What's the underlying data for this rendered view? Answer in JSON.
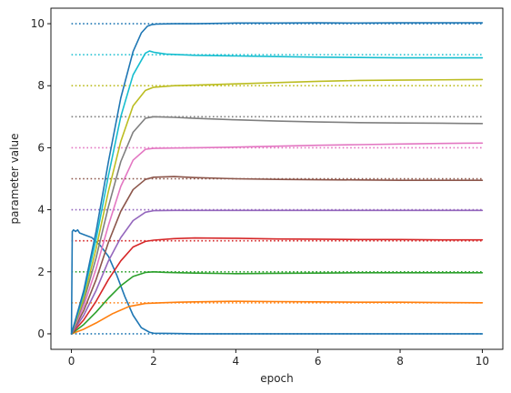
{
  "chart_data": {
    "type": "line",
    "title": "",
    "xlabel": "epoch",
    "ylabel": "parameter value",
    "xlim": [
      -0.5,
      10.5
    ],
    "ylim": [
      -0.5,
      10.5
    ],
    "x_ticks": [
      0,
      2,
      4,
      6,
      8,
      10
    ],
    "x_tick_labels": [
      "0",
      "2",
      "4",
      "6",
      "8",
      "10"
    ],
    "y_ticks": [
      0,
      2,
      4,
      6,
      8,
      10
    ],
    "y_tick_labels": [
      "0",
      "2",
      "4",
      "6",
      "8",
      "10"
    ],
    "grid": false,
    "legend": "none",
    "reference_lines": [
      {
        "y": 0,
        "color": "#1f77b4",
        "style": "dotted"
      },
      {
        "y": 1,
        "color": "#ff7f0e",
        "style": "dotted"
      },
      {
        "y": 2,
        "color": "#2ca02c",
        "style": "dotted"
      },
      {
        "y": 3,
        "color": "#d62728",
        "style": "dotted"
      },
      {
        "y": 4,
        "color": "#9467bd",
        "style": "dotted"
      },
      {
        "y": 5,
        "color": "#8c564b",
        "style": "dotted"
      },
      {
        "y": 6,
        "color": "#e377c2",
        "style": "dotted"
      },
      {
        "y": 7,
        "color": "#7f7f7f",
        "style": "dotted"
      },
      {
        "y": 8,
        "color": "#bcbd22",
        "style": "dotted"
      },
      {
        "y": 9,
        "color": "#17becf",
        "style": "dotted"
      },
      {
        "y": 10,
        "color": "#1f77b4",
        "style": "dotted"
      }
    ],
    "series": [
      {
        "color": "#1f77b4",
        "x": [
          0,
          0.02,
          0.05,
          0.1,
          0.15,
          0.2,
          0.3,
          0.5,
          0.7,
          0.9,
          1.1,
          1.3,
          1.5,
          1.7,
          1.9,
          2.0,
          2.5,
          3,
          4,
          6,
          8,
          10
        ],
        "y": [
          0,
          3.3,
          3.35,
          3.3,
          3.35,
          3.25,
          3.2,
          3.1,
          2.85,
          2.5,
          1.9,
          1.2,
          0.6,
          0.2,
          0.05,
          0.02,
          0.01,
          0,
          0,
          0,
          0,
          0
        ]
      },
      {
        "color": "#ff7f0e",
        "x": [
          0,
          0.3,
          0.6,
          1.0,
          1.4,
          1.8,
          2.2,
          2.6,
          3.0,
          4.0,
          5.0,
          6.0,
          7.0,
          8.0,
          9.0,
          10.0
        ],
        "y": [
          0,
          0.15,
          0.35,
          0.65,
          0.88,
          0.98,
          1.0,
          1.02,
          1.03,
          1.05,
          1.04,
          1.03,
          1.02,
          1.02,
          1.01,
          1.0
        ]
      },
      {
        "color": "#2ca02c",
        "x": [
          0,
          0.3,
          0.6,
          0.9,
          1.2,
          1.5,
          1.8,
          2.0,
          2.3,
          3.0,
          4.0,
          5.0,
          6.0,
          7.0,
          8.0,
          9.0,
          10.0
        ],
        "y": [
          0,
          0.3,
          0.7,
          1.15,
          1.55,
          1.85,
          1.98,
          2.0,
          1.98,
          1.96,
          1.94,
          1.95,
          1.96,
          1.97,
          1.97,
          1.97,
          1.97
        ]
      },
      {
        "color": "#d62728",
        "x": [
          0,
          0.3,
          0.6,
          0.9,
          1.2,
          1.5,
          1.8,
          2.0,
          2.5,
          3.0,
          4.0,
          5.0,
          6.0,
          7.0,
          8.0,
          9.0,
          10.0
        ],
        "y": [
          0,
          0.45,
          1.05,
          1.75,
          2.35,
          2.8,
          2.98,
          3.02,
          3.07,
          3.09,
          3.08,
          3.06,
          3.05,
          3.04,
          3.04,
          3.03,
          3.03
        ]
      },
      {
        "color": "#9467bd",
        "x": [
          0,
          0.3,
          0.6,
          0.9,
          1.2,
          1.5,
          1.8,
          2.0,
          2.5,
          3.0,
          4.0,
          5.0,
          6.0,
          7.0,
          8.0,
          9.0,
          10.0
        ],
        "y": [
          0,
          0.6,
          1.4,
          2.35,
          3.1,
          3.65,
          3.92,
          3.97,
          3.98,
          3.98,
          3.98,
          3.98,
          3.98,
          3.98,
          3.98,
          3.98,
          3.98
        ]
      },
      {
        "color": "#8c564b",
        "x": [
          0,
          0.3,
          0.6,
          0.9,
          1.2,
          1.5,
          1.8,
          2.0,
          2.5,
          3.0,
          4.0,
          5.0,
          6.0,
          7.0,
          8.0,
          9.0,
          10.0
        ],
        "y": [
          0,
          0.75,
          1.75,
          2.95,
          3.95,
          4.65,
          4.98,
          5.05,
          5.07,
          5.04,
          5.0,
          4.98,
          4.97,
          4.96,
          4.95,
          4.95,
          4.95
        ]
      },
      {
        "color": "#e377c2",
        "x": [
          0,
          0.3,
          0.6,
          0.9,
          1.2,
          1.5,
          1.8,
          2.0,
          2.5,
          3.0,
          4.0,
          5.0,
          6.0,
          7.0,
          8.0,
          9.0,
          10.0
        ],
        "y": [
          0,
          0.9,
          2.1,
          3.5,
          4.75,
          5.6,
          5.95,
          5.98,
          5.99,
          6.0,
          6.02,
          6.05,
          6.08,
          6.1,
          6.12,
          6.14,
          6.15
        ]
      },
      {
        "color": "#7f7f7f",
        "x": [
          0,
          0.3,
          0.6,
          0.9,
          1.2,
          1.5,
          1.8,
          2.0,
          2.5,
          3.0,
          4.0,
          5.0,
          6.0,
          7.0,
          8.0,
          9.0,
          10.0
        ],
        "y": [
          0,
          1.05,
          2.45,
          4.1,
          5.55,
          6.5,
          6.95,
          7.0,
          6.98,
          6.95,
          6.9,
          6.86,
          6.83,
          6.81,
          6.8,
          6.79,
          6.78
        ]
      },
      {
        "color": "#bcbd22",
        "x": [
          0,
          0.3,
          0.6,
          0.9,
          1.2,
          1.5,
          1.8,
          2.0,
          2.5,
          3.0,
          4.0,
          5.0,
          6.0,
          7.0,
          8.0,
          9.0,
          10.0
        ],
        "y": [
          0,
          1.15,
          2.75,
          4.6,
          6.2,
          7.35,
          7.85,
          7.95,
          8.0,
          8.02,
          8.06,
          8.1,
          8.14,
          8.17,
          8.18,
          8.19,
          8.2
        ]
      },
      {
        "color": "#17becf",
        "x": [
          0,
          0.3,
          0.6,
          0.9,
          1.2,
          1.5,
          1.8,
          1.9,
          2.0,
          2.3,
          3.0,
          4.0,
          5.0,
          6.0,
          7.0,
          8.0,
          9.0,
          10.0
        ],
        "y": [
          0,
          1.3,
          3.05,
          5.1,
          7.0,
          8.35,
          9.05,
          9.12,
          9.08,
          9.02,
          8.98,
          8.96,
          8.94,
          8.92,
          8.91,
          8.9,
          8.9,
          8.9
        ]
      },
      {
        "color": "#1f77b4",
        "x": [
          0,
          0.3,
          0.6,
          0.9,
          1.2,
          1.5,
          1.7,
          1.85,
          1.95,
          2.1,
          2.5,
          3.0,
          4.0,
          5.0,
          6.0,
          7.0,
          8.0,
          9.0,
          10.0
        ],
        "y": [
          0,
          1.4,
          3.3,
          5.55,
          7.6,
          9.1,
          9.7,
          9.92,
          9.97,
          9.99,
          10.0,
          10.0,
          10.02,
          10.02,
          10.03,
          10.02,
          10.03,
          10.03,
          10.03
        ]
      }
    ]
  }
}
